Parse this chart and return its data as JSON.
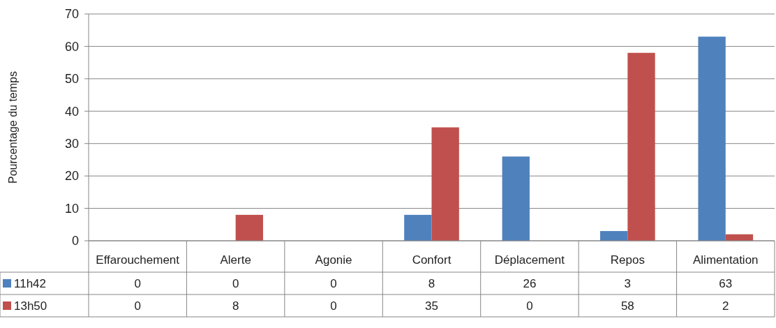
{
  "chart_data": {
    "type": "bar",
    "ylabel": "Pourcentage du temps",
    "categories": [
      "Effarouchement",
      "Alerte",
      "Agonie",
      "Confort",
      "Déplacement",
      "Repos",
      "Alimentation"
    ],
    "series": [
      {
        "name": "11h42",
        "color": "#4f81bd",
        "values": [
          0,
          0,
          0,
          8,
          26,
          3,
          63
        ]
      },
      {
        "name": "13h50",
        "color": "#c0504d",
        "values": [
          0,
          8,
          0,
          35,
          0,
          58,
          2
        ]
      }
    ],
    "ylim": [
      0,
      70
    ],
    "yticks": [
      0,
      10,
      20,
      30,
      40,
      50,
      60,
      70
    ],
    "grid": "y",
    "legend": "bottom left",
    "data_labels": true
  }
}
